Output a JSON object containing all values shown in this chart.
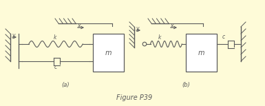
{
  "bg_color": "#FEFBD8",
  "line_color": "#5a5a5a",
  "title": "Figure P39",
  "label_a": "(a)",
  "label_b": "(b)",
  "fig_width": 3.85,
  "fig_height": 1.54,
  "dpi": 100
}
